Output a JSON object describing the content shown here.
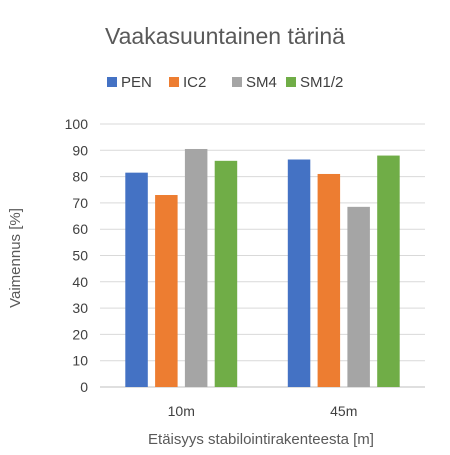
{
  "chart_data": {
    "type": "bar",
    "title": "Vaakasuuntainen tärinä",
    "xlabel": "Etäisyys stabilointirakenteesta [m]",
    "ylabel": "Vaimennus [%]",
    "categories": [
      "10m",
      "45m"
    ],
    "ylim": [
      0,
      100
    ],
    "yticks": [
      0,
      10,
      20,
      30,
      40,
      50,
      60,
      70,
      80,
      90,
      100
    ],
    "grid": true,
    "legend_position": "top",
    "series": [
      {
        "name": "PEN",
        "color": "#4472c4",
        "values": [
          81.5,
          86.5
        ]
      },
      {
        "name": "IC2",
        "color": "#ed7d31",
        "values": [
          73,
          81
        ]
      },
      {
        "name": "SM4",
        "color": "#a5a5a5",
        "values": [
          90.5,
          68.5
        ]
      },
      {
        "name": "SM1/2",
        "color": "#70ad47",
        "values": [
          86,
          88
        ]
      }
    ]
  }
}
